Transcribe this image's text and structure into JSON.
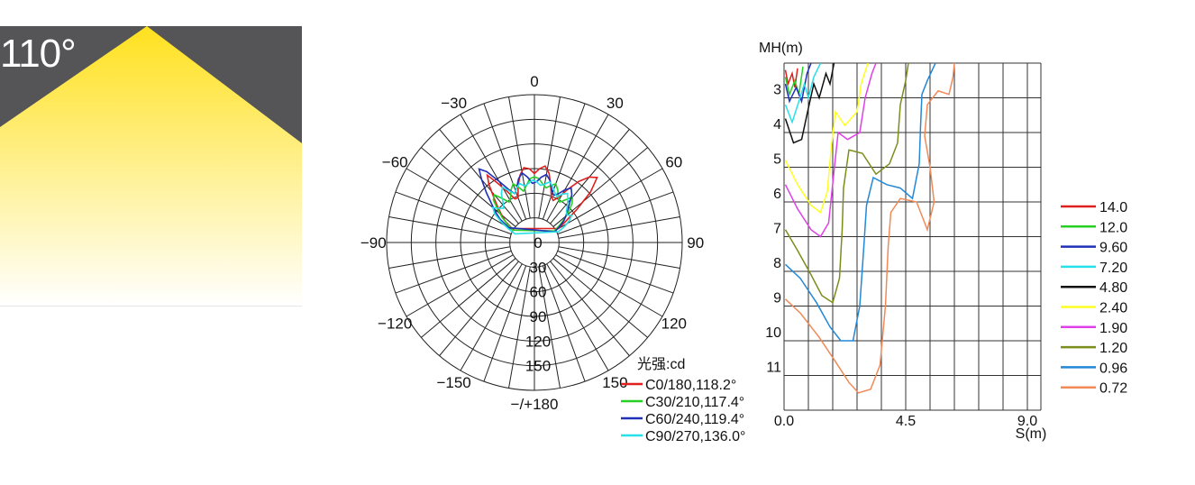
{
  "beam_panel": {
    "angle_label": "110°",
    "background_color": "#555456",
    "beam_color_top": "#ffe11e",
    "beam_color_bottom": "#ffffff"
  },
  "chart_data": [
    {
      "type": "polar",
      "unit_label": "光强:cd",
      "angle_labels": [
        {
          "angle": 180,
          "text": "−/+180"
        },
        {
          "angle": 150,
          "text": "150"
        },
        {
          "angle": 120,
          "text": "120"
        },
        {
          "angle": 90,
          "text": "90"
        },
        {
          "angle": 60,
          "text": "60"
        },
        {
          "angle": 30,
          "text": "30"
        },
        {
          "angle": 0,
          "text": "0"
        },
        {
          "angle": -30,
          "text": "−30"
        },
        {
          "angle": -60,
          "text": "−60"
        },
        {
          "angle": -90,
          "text": "−90"
        },
        {
          "angle": -120,
          "text": "−120"
        },
        {
          "angle": -150,
          "text": "−150"
        }
      ],
      "radial_ticks": [
        {
          "value": 0,
          "text": "0"
        },
        {
          "value": 30,
          "text": "30"
        },
        {
          "value": 60,
          "text": "60"
        },
        {
          "value": 90,
          "text": "90"
        },
        {
          "value": 120,
          "text": "120"
        },
        {
          "value": 150,
          "text": "150"
        }
      ],
      "r_max": 180,
      "angle_step": 10,
      "series": [
        {
          "name": "C0/180,118.2°",
          "color": "#e0201e",
          "points": [
            [
              -58,
              32
            ],
            [
              -54,
              44
            ],
            [
              -50,
              52
            ],
            [
              -46,
              62
            ],
            [
              -42,
              74
            ],
            [
              -38,
              90
            ],
            [
              -35,
              100
            ],
            [
              -32,
              86
            ],
            [
              -28,
              70
            ],
            [
              -24,
              58
            ],
            [
              -20,
              58
            ],
            [
              -16,
              72
            ],
            [
              -12,
              84
            ],
            [
              -8,
              92
            ],
            [
              -4,
              90
            ],
            [
              0,
              84
            ],
            [
              4,
              90
            ],
            [
              8,
              94
            ],
            [
              12,
              86
            ],
            [
              16,
              72
            ],
            [
              20,
              60
            ],
            [
              24,
              56
            ],
            [
              28,
              62
            ],
            [
              32,
              76
            ],
            [
              36,
              92
            ],
            [
              40,
              104
            ],
            [
              44,
              110
            ],
            [
              48,
              92
            ],
            [
              52,
              66
            ],
            [
              56,
              46
            ],
            [
              60,
              34
            ]
          ]
        },
        {
          "name": "C30/210,117.4°",
          "color": "#27d027",
          "points": [
            [
              -60,
              30
            ],
            [
              -56,
              40
            ],
            [
              -52,
              50
            ],
            [
              -48,
              60
            ],
            [
              -44,
              72
            ],
            [
              -40,
              76
            ],
            [
              -36,
              66
            ],
            [
              -32,
              58
            ],
            [
              -28,
              62
            ],
            [
              -24,
              70
            ],
            [
              -20,
              76
            ],
            [
              -16,
              70
            ],
            [
              -12,
              64
            ],
            [
              -8,
              70
            ],
            [
              -4,
              78
            ],
            [
              0,
              80
            ],
            [
              4,
              78
            ],
            [
              8,
              72
            ],
            [
              12,
              68
            ],
            [
              16,
              72
            ],
            [
              20,
              76
            ],
            [
              24,
              70
            ],
            [
              28,
              62
            ],
            [
              32,
              58
            ],
            [
              36,
              64
            ],
            [
              40,
              72
            ],
            [
              44,
              66
            ],
            [
              48,
              56
            ],
            [
              52,
              46
            ],
            [
              56,
              36
            ],
            [
              60,
              28
            ]
          ]
        },
        {
          "name": "C60/240,119.4°",
          "color": "#2030b8",
          "points": [
            [
              -60,
              36
            ],
            [
              -56,
              50
            ],
            [
              -52,
              60
            ],
            [
              -48,
              70
            ],
            [
              -44,
              84
            ],
            [
              -40,
              100
            ],
            [
              -37,
              112
            ],
            [
              -34,
              104
            ],
            [
              -30,
              86
            ],
            [
              -26,
              72
            ],
            [
              -22,
              64
            ],
            [
              -18,
              70
            ],
            [
              -14,
              80
            ],
            [
              -10,
              86
            ],
            [
              -6,
              80
            ],
            [
              -2,
              72
            ],
            [
              2,
              74
            ],
            [
              6,
              80
            ],
            [
              10,
              84
            ],
            [
              14,
              78
            ],
            [
              18,
              68
            ],
            [
              22,
              62
            ],
            [
              26,
              66
            ],
            [
              30,
              74
            ],
            [
              34,
              80
            ],
            [
              38,
              74
            ],
            [
              42,
              64
            ],
            [
              46,
              56
            ],
            [
              50,
              50
            ],
            [
              54,
              44
            ],
            [
              58,
              36
            ],
            [
              62,
              28
            ]
          ]
        },
        {
          "name": "C90/270,136.0°",
          "color": "#28e0e8",
          "points": [
            [
              -66,
              26
            ],
            [
              -62,
              36
            ],
            [
              -58,
              48
            ],
            [
              -54,
              60
            ],
            [
              -50,
              66
            ],
            [
              -46,
              60
            ],
            [
              -42,
              56
            ],
            [
              -38,
              62
            ],
            [
              -34,
              72
            ],
            [
              -30,
              78
            ],
            [
              -26,
              70
            ],
            [
              -22,
              64
            ],
            [
              -18,
              70
            ],
            [
              -14,
              74
            ],
            [
              -10,
              70
            ],
            [
              -6,
              72
            ],
            [
              -2,
              76
            ],
            [
              2,
              74
            ],
            [
              6,
              70
            ],
            [
              10,
              72
            ],
            [
              14,
              76
            ],
            [
              18,
              72
            ],
            [
              22,
              66
            ],
            [
              26,
              62
            ],
            [
              30,
              68
            ],
            [
              34,
              72
            ],
            [
              38,
              66
            ],
            [
              42,
              60
            ],
            [
              46,
              54
            ],
            [
              50,
              52
            ],
            [
              54,
              56
            ],
            [
              58,
              50
            ],
            [
              62,
              42
            ],
            [
              66,
              32
            ]
          ]
        }
      ]
    },
    {
      "type": "isolux-contour",
      "ylabel": "MH(m)",
      "xlabel": "S(m)",
      "x_ticks": [
        {
          "value": 0,
          "text": "0.0"
        },
        {
          "value": 4.5,
          "text": "4.5"
        },
        {
          "value": 9,
          "text": "9.0"
        }
      ],
      "y_ticks": [
        {
          "value": 3,
          "text": "3"
        },
        {
          "value": 4,
          "text": "4"
        },
        {
          "value": 5,
          "text": "5"
        },
        {
          "value": 6,
          "text": "6"
        },
        {
          "value": 7,
          "text": "7"
        },
        {
          "value": 8,
          "text": "8"
        },
        {
          "value": 9,
          "text": "9"
        },
        {
          "value": 10,
          "text": "10"
        },
        {
          "value": 11,
          "text": "11"
        }
      ],
      "xlim": [
        0,
        9.5
      ],
      "ylim": [
        2,
        12
      ],
      "series": [
        {
          "name": "14.0",
          "color": "#e0201e",
          "points": [
            [
              0.05,
              2.2
            ],
            [
              0.15,
              2.6
            ],
            [
              0.3,
              2.3
            ],
            [
              0.4,
              2.7
            ],
            [
              0.5,
              2.15
            ]
          ]
        },
        {
          "name": "12.0",
          "color": "#27d027",
          "points": [
            [
              0.05,
              2.4
            ],
            [
              0.2,
              2.9
            ],
            [
              0.4,
              2.5
            ],
            [
              0.55,
              2.9
            ],
            [
              0.7,
              2.1
            ]
          ]
        },
        {
          "name": "9.60",
          "color": "#2030b8",
          "points": [
            [
              0.05,
              2.6
            ],
            [
              0.2,
              3.1
            ],
            [
              0.45,
              2.7
            ],
            [
              0.65,
              3.1
            ],
            [
              0.85,
              2.3
            ],
            [
              1.0,
              2.0
            ]
          ]
        },
        {
          "name": "7.20",
          "color": "#28e0e8",
          "points": [
            [
              0.05,
              3.2
            ],
            [
              0.3,
              3.7
            ],
            [
              0.55,
              3.1
            ],
            [
              0.75,
              2.6
            ],
            [
              0.9,
              3.0
            ],
            [
              1.1,
              2.4
            ],
            [
              1.35,
              2.0
            ]
          ]
        },
        {
          "name": "4.80",
          "color": "#111111",
          "points": [
            [
              0.05,
              3.6
            ],
            [
              0.35,
              4.3
            ],
            [
              0.65,
              4.2
            ],
            [
              0.9,
              3.3
            ],
            [
              1.1,
              2.6
            ],
            [
              1.3,
              3.0
            ],
            [
              1.55,
              2.3
            ],
            [
              1.7,
              2.6
            ],
            [
              1.85,
              2.0
            ]
          ]
        },
        {
          "name": "2.40",
          "color": "#ffff22",
          "points": [
            [
              0.05,
              4.8
            ],
            [
              0.5,
              5.5
            ],
            [
              1.0,
              6.1
            ],
            [
              1.35,
              6.3
            ],
            [
              1.6,
              5.7
            ],
            [
              1.75,
              4.4
            ],
            [
              1.9,
              3.4
            ],
            [
              2.25,
              3.8
            ],
            [
              2.7,
              3.4
            ],
            [
              2.85,
              2.6
            ],
            [
              3.1,
              2.0
            ]
          ]
        },
        {
          "name": "1.90",
          "color": "#e040e8",
          "points": [
            [
              0.05,
              5.5
            ],
            [
              0.5,
              6.2
            ],
            [
              1.0,
              6.8
            ],
            [
              1.35,
              7.0
            ],
            [
              1.65,
              6.6
            ],
            [
              1.85,
              5.1
            ],
            [
              2.0,
              4.0
            ],
            [
              2.35,
              4.2
            ],
            [
              2.8,
              4.0
            ],
            [
              3.0,
              3.0
            ],
            [
              3.25,
              2.3
            ],
            [
              3.4,
              2.0
            ]
          ]
        },
        {
          "name": "1.20",
          "color": "#7a8e1c",
          "points": [
            [
              0.05,
              6.8
            ],
            [
              0.5,
              7.4
            ],
            [
              1.0,
              8.1
            ],
            [
              1.4,
              8.7
            ],
            [
              1.8,
              8.9
            ],
            [
              2.05,
              8.2
            ],
            [
              2.15,
              6.8
            ],
            [
              2.2,
              5.6
            ],
            [
              2.4,
              4.5
            ],
            [
              2.9,
              4.6
            ],
            [
              3.4,
              5.2
            ],
            [
              3.9,
              4.9
            ],
            [
              4.2,
              4.3
            ],
            [
              4.3,
              3.2
            ],
            [
              4.5,
              2.5
            ],
            [
              4.6,
              2.0
            ]
          ]
        },
        {
          "name": "0.96",
          "color": "#2288d8",
          "points": [
            [
              0.05,
              7.8
            ],
            [
              0.6,
              8.2
            ],
            [
              1.2,
              8.9
            ],
            [
              1.7,
              9.6
            ],
            [
              2.1,
              10.0
            ],
            [
              2.55,
              10.0
            ],
            [
              2.8,
              9.0
            ],
            [
              2.95,
              7.3
            ],
            [
              3.05,
              6.1
            ],
            [
              3.3,
              5.3
            ],
            [
              3.8,
              5.5
            ],
            [
              4.3,
              5.6
            ],
            [
              4.75,
              5.9
            ],
            [
              5.0,
              4.9
            ],
            [
              5.05,
              3.8
            ],
            [
              5.1,
              2.9
            ],
            [
              5.3,
              2.5
            ],
            [
              5.6,
              2.0
            ]
          ]
        },
        {
          "name": "0.72",
          "color": "#f08a56",
          "points": [
            [
              0.05,
              8.8
            ],
            [
              0.6,
              9.2
            ],
            [
              1.3,
              9.9
            ],
            [
              1.9,
              10.6
            ],
            [
              2.4,
              11.2
            ],
            [
              2.75,
              11.5
            ],
            [
              3.2,
              11.4
            ],
            [
              3.55,
              10.7
            ],
            [
              3.75,
              9.0
            ],
            [
              3.85,
              7.3
            ],
            [
              3.95,
              6.3
            ],
            [
              4.3,
              5.9
            ],
            [
              4.9,
              6.0
            ],
            [
              5.3,
              6.8
            ],
            [
              5.55,
              6.0
            ],
            [
              5.4,
              5.0
            ],
            [
              5.2,
              4.1
            ],
            [
              5.3,
              3.2
            ],
            [
              5.7,
              2.8
            ],
            [
              6.1,
              2.9
            ],
            [
              6.25,
              2.4
            ],
            [
              6.3,
              2.0
            ]
          ]
        }
      ]
    }
  ]
}
